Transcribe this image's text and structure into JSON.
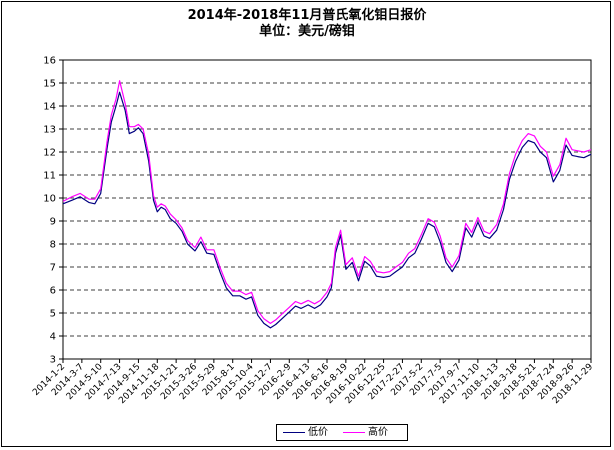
{
  "chart_data": {
    "type": "line",
    "title": "2014年-2018年11月普氏氧化钼日报价",
    "subtitle": "单位：美元/磅钼",
    "xlabel": "",
    "ylabel": "",
    "ylim": [
      3,
      16
    ],
    "yticks": [
      3,
      4,
      5,
      6,
      7,
      8,
      9,
      10,
      11,
      12,
      13,
      14,
      15,
      16
    ],
    "grid": "horizontal dashed",
    "legend_position": "bottom-center",
    "x_tick_labels": [
      "2014-1-2",
      "2014-3-7",
      "2014-5-10",
      "2014-7-13",
      "2014-9-15",
      "2014-11-18",
      "2015-1-21",
      "2015-3-26",
      "2015-5-29",
      "2015-8-1",
      "2015-10-4",
      "2015-12-7",
      "2016-2-9",
      "2016-4-13",
      "2016-6-16",
      "2016-8-19",
      "2016-10-22",
      "2016-12-25",
      "2017-2-27",
      "2017-5-2",
      "2017-7-5",
      "2017-9-7",
      "2017-11-10",
      "2018-1-13",
      "2018-3-18",
      "2018-5-21",
      "2018-7-24",
      "2018-9-26",
      "2018-11-29"
    ],
    "x": [
      "2014-1-2",
      "2014-2-1",
      "2014-3-1",
      "2014-4-1",
      "2014-4-20",
      "2014-5-10",
      "2014-6-1",
      "2014-6-15",
      "2014-7-1",
      "2014-7-13",
      "2014-8-1",
      "2014-8-15",
      "2014-9-1",
      "2014-9-15",
      "2014-10-1",
      "2014-10-20",
      "2014-11-5",
      "2014-11-18",
      "2014-12-1",
      "2014-12-15",
      "2015-1-1",
      "2015-1-21",
      "2015-2-10",
      "2015-3-1",
      "2015-3-26",
      "2015-4-15",
      "2015-5-5",
      "2015-5-29",
      "2015-6-20",
      "2015-7-10",
      "2015-8-1",
      "2015-8-25",
      "2015-9-15",
      "2015-10-4",
      "2015-10-25",
      "2015-11-15",
      "2015-12-7",
      "2015-12-25",
      "2016-1-15",
      "2016-2-9",
      "2016-3-1",
      "2016-3-20",
      "2016-4-13",
      "2016-5-5",
      "2016-5-25",
      "2016-6-16",
      "2016-7-1",
      "2016-7-15",
      "2016-8-1",
      "2016-8-19",
      "2016-9-10",
      "2016-10-1",
      "2016-10-22",
      "2016-11-10",
      "2016-12-1",
      "2016-12-25",
      "2017-1-15",
      "2017-2-5",
      "2017-2-27",
      "2017-3-20",
      "2017-4-10",
      "2017-5-2",
      "2017-5-25",
      "2017-6-15",
      "2017-7-5",
      "2017-7-25",
      "2017-8-15",
      "2017-9-7",
      "2017-9-30",
      "2017-10-20",
      "2017-11-10",
      "2017-12-1",
      "2017-12-20",
      "2018-1-13",
      "2018-2-5",
      "2018-2-25",
      "2018-3-18",
      "2018-4-10",
      "2018-4-30",
      "2018-5-21",
      "2018-6-10",
      "2018-7-1",
      "2018-7-24",
      "2018-8-15",
      "2018-9-5",
      "2018-9-26",
      "2018-10-15",
      "2018-11-5",
      "2018-11-29"
    ],
    "series": [
      {
        "name": "低价",
        "color": "#000080",
        "values": [
          9.75,
          9.9,
          10.05,
          9.8,
          9.75,
          10.2,
          12.2,
          13.3,
          14.0,
          14.6,
          13.8,
          12.8,
          12.9,
          13.05,
          12.8,
          11.6,
          9.9,
          9.4,
          9.6,
          9.5,
          9.1,
          8.9,
          8.55,
          8.0,
          7.7,
          8.1,
          7.6,
          7.55,
          6.75,
          6.1,
          5.75,
          5.75,
          5.6,
          5.7,
          4.9,
          4.55,
          4.35,
          4.5,
          4.75,
          5.05,
          5.3,
          5.2,
          5.35,
          5.2,
          5.35,
          5.7,
          6.1,
          7.6,
          8.4,
          6.9,
          7.2,
          6.4,
          7.25,
          7.05,
          6.6,
          6.55,
          6.6,
          6.8,
          7.0,
          7.4,
          7.6,
          8.2,
          8.9,
          8.75,
          8.1,
          7.2,
          6.8,
          7.3,
          8.7,
          8.3,
          8.95,
          8.35,
          8.25,
          8.6,
          9.5,
          10.8,
          11.6,
          12.2,
          12.5,
          12.4,
          12.0,
          11.75,
          10.7,
          11.2,
          12.3,
          11.85,
          11.8,
          11.75,
          11.9
        ]
      },
      {
        "name": "高价",
        "color": "#ff00ff",
        "values": [
          9.85,
          10.05,
          10.2,
          9.95,
          9.95,
          10.4,
          12.5,
          13.6,
          14.3,
          15.1,
          14.1,
          13.1,
          13.1,
          13.2,
          13.0,
          11.9,
          10.1,
          9.6,
          9.75,
          9.65,
          9.3,
          9.05,
          8.7,
          8.15,
          7.85,
          8.3,
          7.75,
          7.75,
          6.95,
          6.3,
          5.95,
          5.95,
          5.8,
          5.9,
          5.1,
          4.75,
          4.55,
          4.7,
          4.95,
          5.25,
          5.5,
          5.4,
          5.55,
          5.4,
          5.55,
          5.9,
          6.3,
          7.85,
          8.6,
          7.1,
          7.4,
          6.6,
          7.45,
          7.25,
          6.8,
          6.75,
          6.8,
          7.0,
          7.2,
          7.6,
          7.8,
          8.4,
          9.1,
          8.95,
          8.35,
          7.4,
          7.0,
          7.5,
          8.9,
          8.5,
          9.15,
          8.55,
          8.45,
          8.85,
          9.75,
          11.05,
          11.9,
          12.5,
          12.8,
          12.7,
          12.25,
          12.0,
          10.95,
          11.45,
          12.6,
          12.1,
          12.05,
          12.0,
          12.1
        ]
      }
    ]
  },
  "legend": {
    "low_label": "低价",
    "high_label": "高价"
  }
}
